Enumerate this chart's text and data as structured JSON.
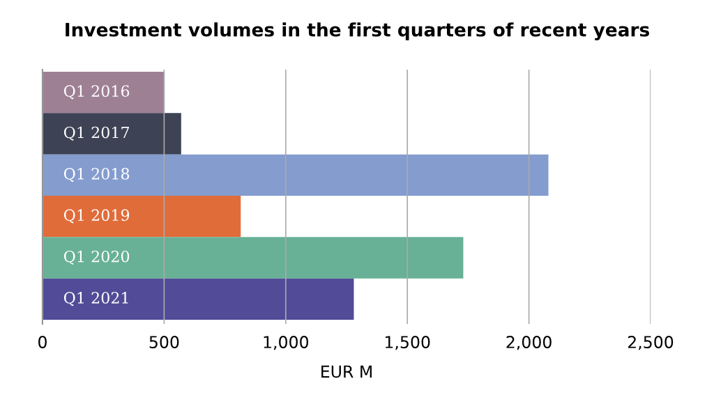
{
  "chart_data": {
    "type": "bar",
    "orientation": "horizontal",
    "title": "Investment volumes in the first quarters of recent years",
    "xlabel": "EUR M",
    "categories": [
      "Q1 2016",
      "Q1 2017",
      "Q1 2018",
      "Q1 2019",
      "Q1 2020",
      "Q1 2021"
    ],
    "values": [
      500,
      570,
      2080,
      815,
      1730,
      1280
    ],
    "colors": [
      "#9e8095",
      "#3d4255",
      "#849cce",
      "#e06c3a",
      "#68b196",
      "#524b97"
    ],
    "xlim": [
      0,
      2500
    ],
    "xticks": [
      0,
      500,
      {
        "value": 1000,
        "label": "1,000"
      },
      {
        "value": 1500,
        "label": "1,500"
      },
      {
        "value": 2000,
        "label": "2,000"
      },
      {
        "value": 2500,
        "label": "2,500"
      }
    ],
    "grid": "x"
  }
}
